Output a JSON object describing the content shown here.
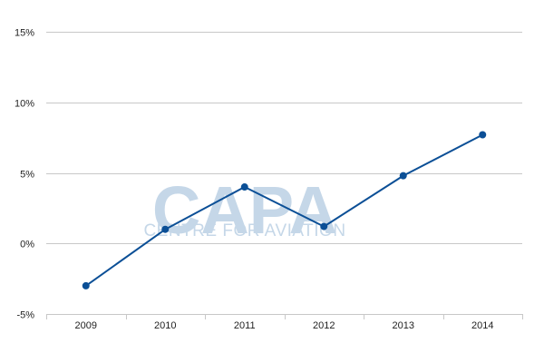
{
  "chart_data": {
    "type": "line",
    "title": "",
    "xlabel": "",
    "ylabel": "",
    "categories": [
      "2009",
      "2010",
      "2011",
      "2012",
      "2013",
      "2014"
    ],
    "series": [
      {
        "values": [
          -3.0,
          1.0,
          4.0,
          1.2,
          4.8,
          7.7
        ],
        "color": "#0b4f96"
      }
    ],
    "ylim": [
      -5,
      15
    ],
    "yticks": [
      -5,
      0,
      5,
      10,
      15
    ],
    "ytick_labels": [
      "-5%",
      "0%",
      "5%",
      "10%",
      "15%"
    ],
    "grid": true,
    "legend": "none"
  },
  "watermark": {
    "logo": "CAPA",
    "tagline": "CENTRE FOR AVIATION"
  }
}
